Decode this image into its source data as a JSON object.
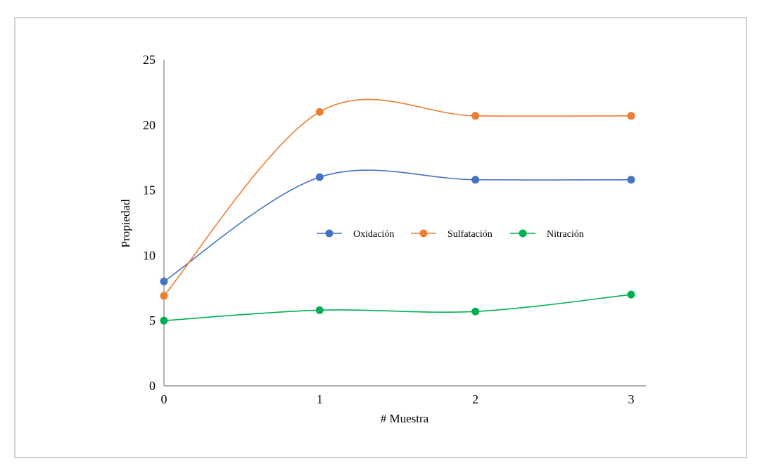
{
  "chart_data": {
    "type": "line",
    "title": "",
    "xlabel": "# Muestra",
    "ylabel": "Propiedad",
    "x": [
      0,
      1,
      2,
      3
    ],
    "xlim": [
      0,
      3
    ],
    "ylim": [
      0,
      25
    ],
    "yticks": [
      0,
      5,
      10,
      15,
      20,
      25
    ],
    "xticks": [
      0,
      1,
      2,
      3
    ],
    "smooth": true,
    "grid": false,
    "legend_position": "center",
    "series": [
      {
        "name": "Oxidación",
        "color": "#4472c4",
        "values": [
          8,
          16,
          15.8,
          15.8
        ]
      },
      {
        "name": "Sulfatación",
        "color": "#ed7d31",
        "values": [
          6.9,
          21,
          20.7,
          20.7
        ]
      },
      {
        "name": "Nitración",
        "color": "#00b050",
        "values": [
          5,
          5.8,
          5.7,
          7
        ]
      }
    ]
  }
}
